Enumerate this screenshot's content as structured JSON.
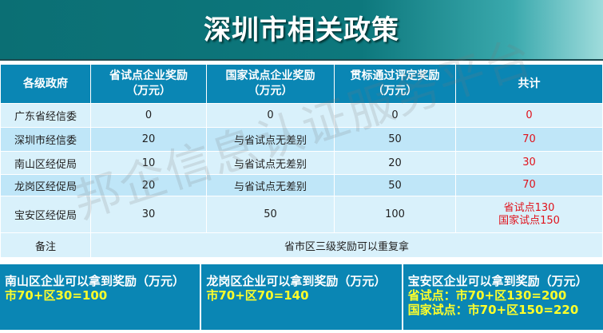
{
  "title": "深圳市相关政策",
  "watermark": "邦企信息认证服务平台",
  "table": {
    "headers": [
      "各级政府",
      "省试点企业奖励\n（万元）",
      "国家试点企业奖励\n（万元）",
      "贯标通过评定奖励\n（万元）",
      "共计"
    ],
    "rows": [
      [
        "广东省经信委",
        "0",
        "0",
        "0",
        "0"
      ],
      [
        "深圳市经信委",
        "20",
        "与省试点无差别",
        "50",
        "70"
      ],
      [
        "南山区经促局",
        "10",
        "与省试点无差别",
        "20",
        "30"
      ],
      [
        "龙岗区经促局",
        "20",
        "与省试点无差别",
        "50",
        "70"
      ],
      [
        "宝安区经促局",
        "30",
        "50",
        "100",
        "省试点130\n国家试点150"
      ]
    ],
    "note_label": "备注",
    "note": "省市区三级奖励可以重复拿"
  },
  "boxes": [
    {
      "title": "南山区企业可以拿到奖励（万元）",
      "lines": [
        "市70+区30=100"
      ]
    },
    {
      "title": "龙岗区企业可以拿到奖励（万元）",
      "lines": [
        "市70+区70=140"
      ]
    },
    {
      "title": "宝安区企业可以拿到奖励（万元）",
      "lines": [
        "省试点：市70+区130=200",
        "国家试点：市70+区150=220"
      ]
    }
  ],
  "colors": {
    "header": "#0a86b4",
    "banner": "#0d787d",
    "total": "#e0121b",
    "highlight": "#ffff2a"
  }
}
